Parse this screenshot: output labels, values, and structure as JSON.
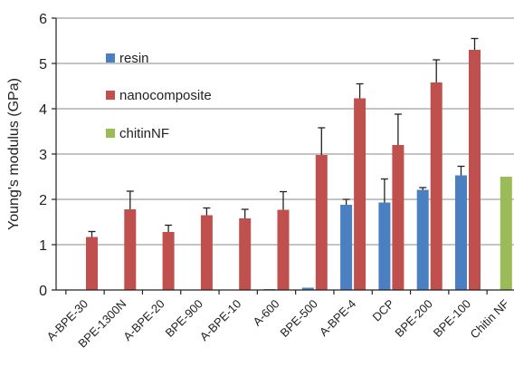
{
  "chart_data": {
    "type": "bar",
    "title": "",
    "xlabel": "",
    "ylabel": "Young's modulus (GPa)",
    "ylim": [
      0,
      6
    ],
    "yticks": [
      "0",
      "1",
      "2",
      "3",
      "4",
      "5",
      "6"
    ],
    "grid": "horizontal",
    "legend_position": "top-left",
    "categories": [
      "A-BPE-30",
      "BPE-1300N",
      "A-BPE-20",
      "BPE-900",
      "A-BPE-10",
      "A-600",
      "BPE-500",
      "A-BPE-4",
      "DCP",
      "BPE-200",
      "BPE-100",
      "Chitin NF"
    ],
    "series": [
      {
        "name": "resin",
        "color": "#4a7fc1",
        "values": [
          null,
          null,
          null,
          null,
          0.01,
          0.02,
          0.05,
          1.88,
          1.93,
          2.21,
          2.53,
          null
        ],
        "errors": [
          null,
          null,
          null,
          null,
          null,
          null,
          null,
          0.12,
          0.52,
          0.05,
          0.2,
          null
        ]
      },
      {
        "name": "nanocomposite",
        "color": "#c0504d",
        "values": [
          1.17,
          1.78,
          1.28,
          1.65,
          1.58,
          1.77,
          2.98,
          4.23,
          3.2,
          4.58,
          5.3,
          null
        ],
        "errors": [
          0.12,
          0.4,
          0.15,
          0.16,
          0.2,
          0.4,
          0.6,
          0.32,
          0.68,
          0.5,
          0.25,
          null
        ]
      },
      {
        "name": "chitinNF",
        "color": "#9bbb59",
        "values": [
          null,
          null,
          null,
          null,
          null,
          null,
          null,
          null,
          null,
          null,
          null,
          2.5
        ],
        "errors": [
          null,
          null,
          null,
          null,
          null,
          null,
          null,
          null,
          null,
          null,
          null,
          null
        ]
      }
    ]
  }
}
